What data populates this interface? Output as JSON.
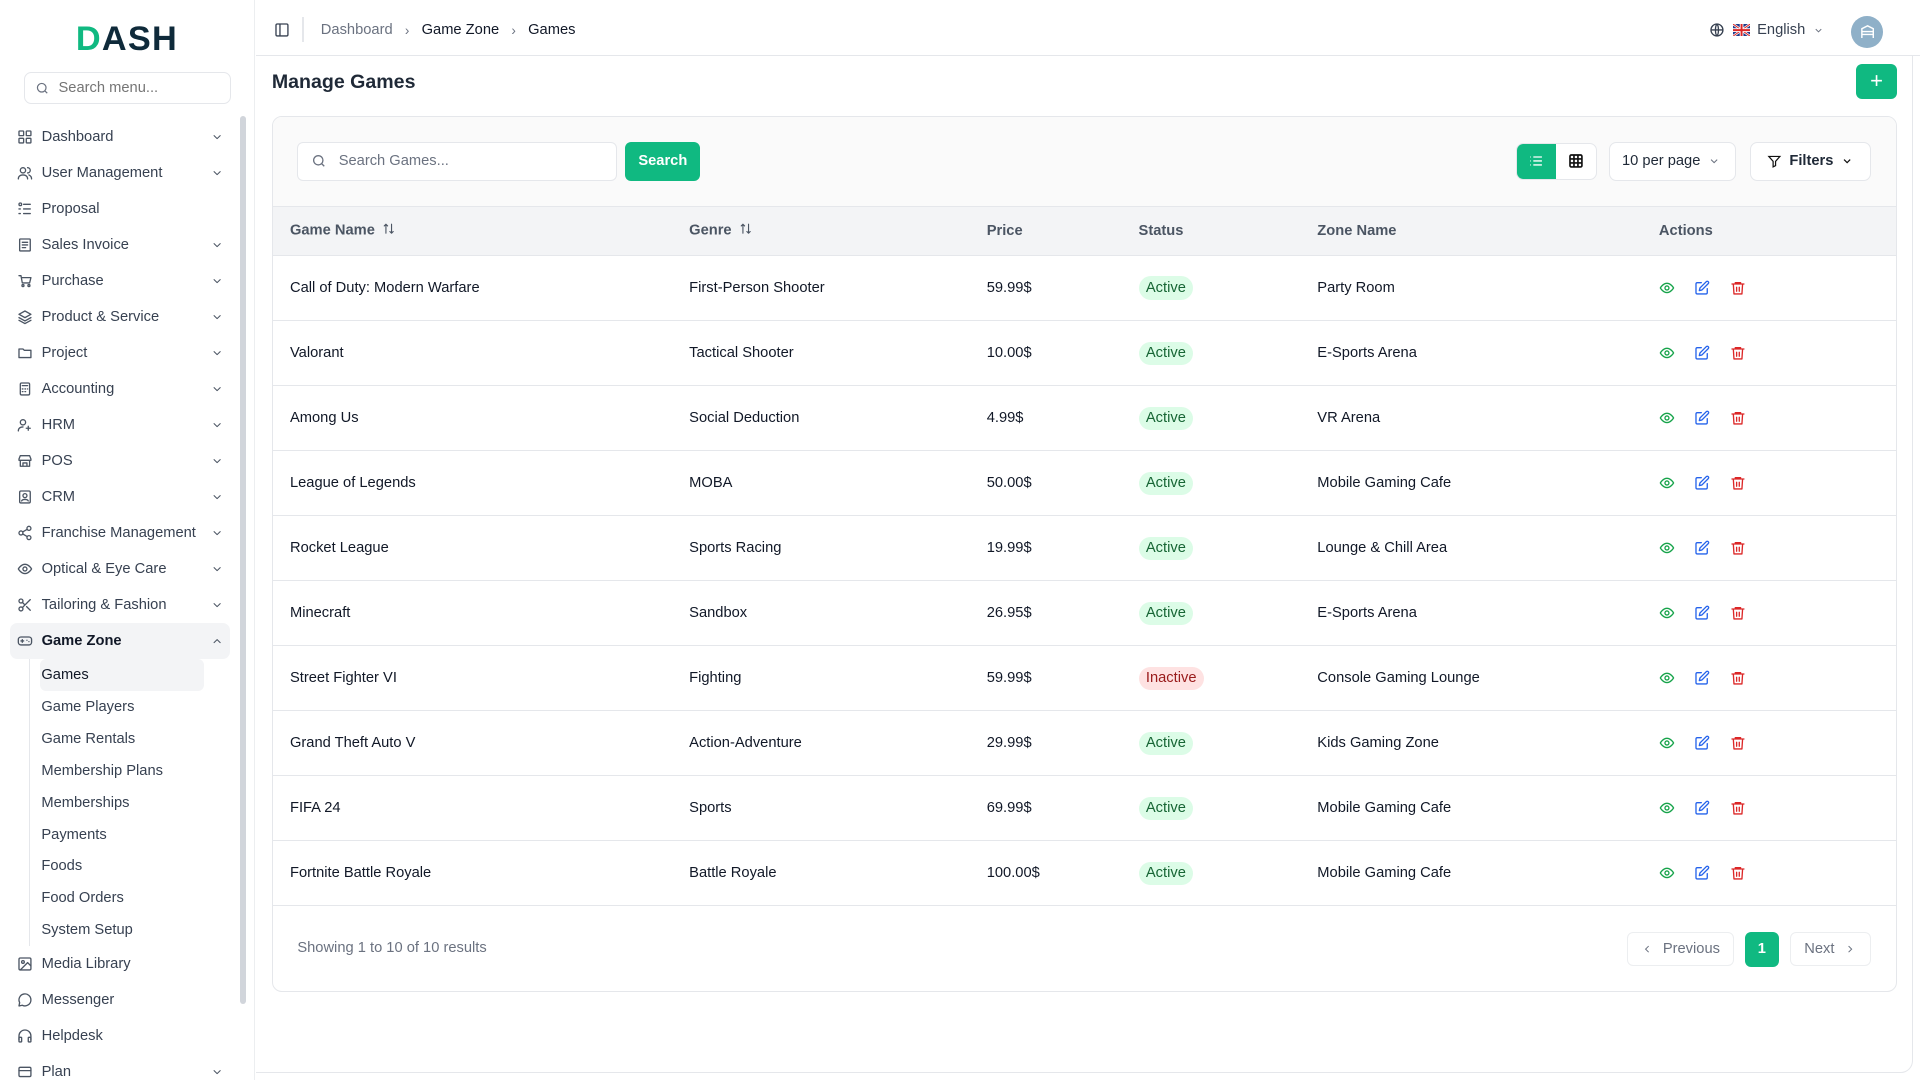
{
  "brand": {
    "logo": "DASH"
  },
  "sidebar": {
    "search_placeholder": "Search menu...",
    "items": [
      {
        "label": "Dashboard",
        "icon": "grid-icon",
        "chevron": "down"
      },
      {
        "label": "User Management",
        "icon": "users-icon",
        "chevron": "down"
      },
      {
        "label": "Proposal",
        "icon": "proposal-icon",
        "chevron": ""
      },
      {
        "label": "Sales Invoice",
        "icon": "invoice-icon",
        "chevron": "down"
      },
      {
        "label": "Purchase",
        "icon": "cart-icon",
        "chevron": "down"
      },
      {
        "label": "Product & Service",
        "icon": "layers-icon",
        "chevron": "down"
      },
      {
        "label": "Project",
        "icon": "folder-icon",
        "chevron": "down"
      },
      {
        "label": "Accounting",
        "icon": "calculator-icon",
        "chevron": "down"
      },
      {
        "label": "HRM",
        "icon": "user-cog-icon",
        "chevron": "down"
      },
      {
        "label": "POS",
        "icon": "store-icon",
        "chevron": "down"
      },
      {
        "label": "CRM",
        "icon": "contact-icon",
        "chevron": "down"
      },
      {
        "label": "Franchise Management",
        "icon": "share-icon",
        "chevron": "down"
      },
      {
        "label": "Optical & Eye Care",
        "icon": "eye-icon",
        "chevron": "down"
      },
      {
        "label": "Tailoring & Fashion",
        "icon": "scissors-icon",
        "chevron": "down"
      },
      {
        "label": "Game Zone",
        "icon": "gamepad-icon",
        "chevron": "up",
        "active": true,
        "children": [
          "Games",
          "Game Players",
          "Game Rentals",
          "Membership Plans",
          "Memberships",
          "Payments",
          "Foods",
          "Food Orders",
          "System Setup"
        ]
      },
      {
        "label": "Media Library",
        "icon": "image-icon",
        "chevron": ""
      },
      {
        "label": "Messenger",
        "icon": "message-icon",
        "chevron": ""
      },
      {
        "label": "Helpdesk",
        "icon": "headphones-icon",
        "chevron": ""
      },
      {
        "label": "Plan",
        "icon": "card-icon",
        "chevron": "down"
      }
    ],
    "active_child": "Games"
  },
  "topbar": {
    "breadcrumb": [
      "Dashboard",
      "Game Zone",
      "Games"
    ],
    "language": "English"
  },
  "page": {
    "title": "Manage Games"
  },
  "toolbar": {
    "search_placeholder": "Search Games...",
    "search_label": "Search",
    "per_page": "10 per page",
    "filters_label": "Filters"
  },
  "table": {
    "headers": [
      "Game Name",
      "Genre",
      "Price",
      "Status",
      "Zone Name",
      "Actions"
    ],
    "rows": [
      [
        "Call of Duty: Modern Warfare",
        "First-Person Shooter",
        "59.99$",
        "Active",
        "Party Room"
      ],
      [
        "Valorant",
        "Tactical Shooter",
        "10.00$",
        "Active",
        "E-Sports Arena"
      ],
      [
        "Among Us",
        "Social Deduction",
        "4.99$",
        "Active",
        "VR Arena"
      ],
      [
        "League of Legends",
        "MOBA",
        "50.00$",
        "Active",
        "Mobile Gaming Cafe"
      ],
      [
        "Rocket League",
        "Sports Racing",
        "19.99$",
        "Active",
        "Lounge & Chill Area"
      ],
      [
        "Minecraft",
        "Sandbox",
        "26.95$",
        "Active",
        "E-Sports Arena"
      ],
      [
        "Street Fighter VI",
        "Fighting",
        "59.99$",
        "Inactive",
        "Console Gaming Lounge"
      ],
      [
        "Grand Theft Auto V",
        "Action-Adventure",
        "29.99$",
        "Active",
        "Kids Gaming Zone"
      ],
      [
        "FIFA 24",
        "Sports",
        "69.99$",
        "Active",
        "Mobile Gaming Cafe"
      ],
      [
        "Fortnite Battle Royale",
        "Battle Royale",
        "100.00$",
        "Active",
        "Mobile Gaming Cafe"
      ]
    ]
  },
  "pagination": {
    "summary": "Showing 1 to 10 of 10 results",
    "previous": "Previous",
    "current": "1",
    "next": "Next"
  },
  "colors": {
    "accent": "#10b981",
    "active_bg": "#dcfce7",
    "inactive_bg": "#fee2e2",
    "view": "#16a34a",
    "edit": "#2563eb",
    "delete": "#dc2626"
  }
}
